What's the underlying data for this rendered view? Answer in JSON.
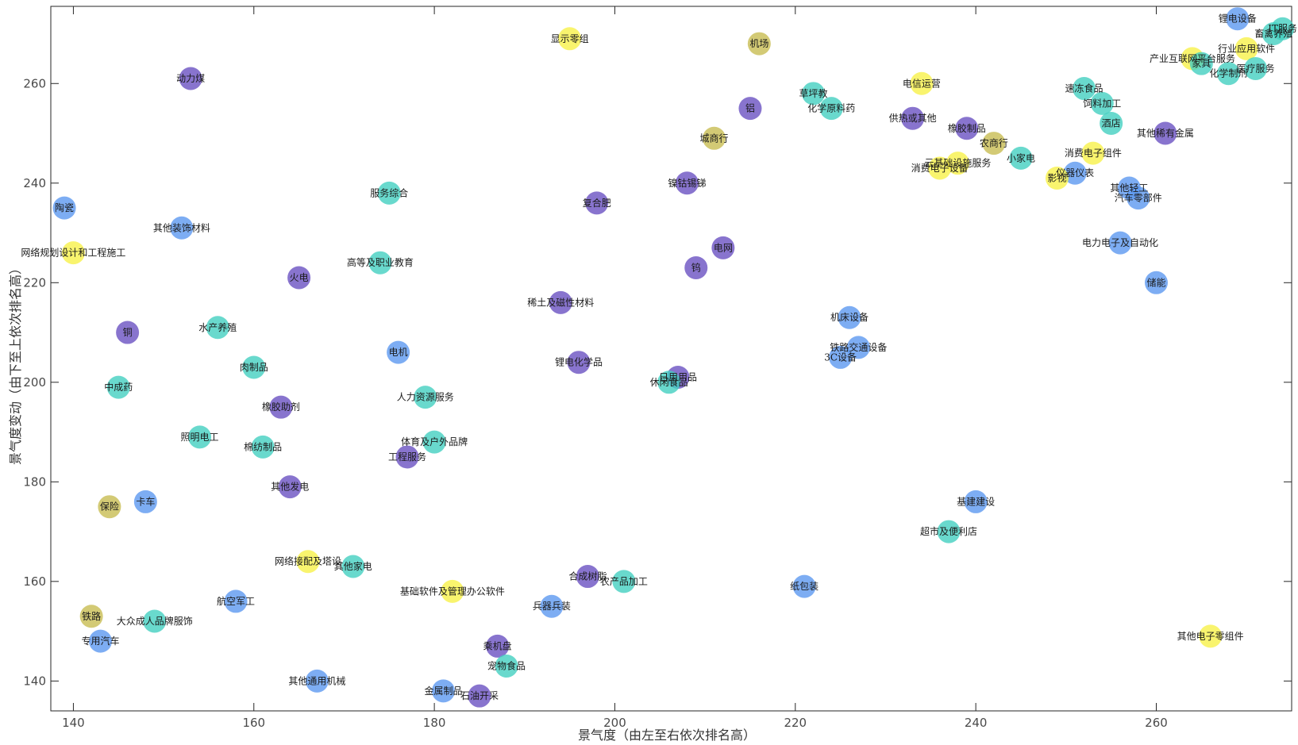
{
  "chart_data": {
    "type": "scatter",
    "xlabel": "景气度（由左至右依次排名高）",
    "ylabel": "景气度变动（由下至上依次排名高）",
    "xlim": [
      137.5,
      275
    ],
    "ylim": [
      134,
      275.5
    ],
    "xticks": [
      140,
      160,
      180,
      200,
      220,
      240,
      260
    ],
    "yticks": [
      140,
      160,
      180,
      200,
      220,
      240,
      260
    ],
    "grid": false,
    "colors": {
      "purple": "#6a51c2",
      "blue": "#5c98f0",
      "teal": "#44cfc0",
      "olive": "#c8bd52",
      "yellow": "#f7f14a"
    },
    "points": [
      {
        "label": "锂电设备",
        "x": 269,
        "y": 273,
        "c": "blue"
      },
      {
        "label": "畜禽养殖",
        "x": 273,
        "y": 270,
        "c": "teal"
      },
      {
        "label": "IT服务",
        "x": 274,
        "y": 271,
        "c": "teal"
      },
      {
        "label": "行业应用软件",
        "x": 270,
        "y": 267,
        "c": "yellow"
      },
      {
        "label": "产业互联网平台服务",
        "x": 264,
        "y": 265,
        "c": "yellow"
      },
      {
        "label": "家具",
        "x": 265,
        "y": 264,
        "c": "teal"
      },
      {
        "label": "化学制剂",
        "x": 268,
        "y": 262,
        "c": "teal"
      },
      {
        "label": "医疗服务",
        "x": 271,
        "y": 263,
        "c": "teal"
      },
      {
        "label": "速冻食品",
        "x": 252,
        "y": 259,
        "c": "teal"
      },
      {
        "label": "饲料加工",
        "x": 254,
        "y": 256,
        "c": "teal"
      },
      {
        "label": "酒店",
        "x": 255,
        "y": 252,
        "c": "teal"
      },
      {
        "label": "其他稀有金属",
        "x": 261,
        "y": 250,
        "c": "purple"
      },
      {
        "label": "消费电子组件",
        "x": 253,
        "y": 246,
        "c": "yellow"
      },
      {
        "label": "小家电",
        "x": 245,
        "y": 245,
        "c": "teal"
      },
      {
        "label": "仪器仪表",
        "x": 251,
        "y": 242,
        "c": "blue"
      },
      {
        "label": "影视",
        "x": 249,
        "y": 241,
        "c": "yellow"
      },
      {
        "label": "其他轻工",
        "x": 257,
        "y": 239,
        "c": "blue"
      },
      {
        "label": "汽车零部件",
        "x": 258,
        "y": 237,
        "c": "blue"
      },
      {
        "label": "电力电子及自动化",
        "x": 256,
        "y": 228,
        "c": "blue"
      },
      {
        "label": "储能",
        "x": 260,
        "y": 220,
        "c": "blue"
      },
      {
        "label": "电信运营",
        "x": 234,
        "y": 260,
        "c": "yellow"
      },
      {
        "label": "供热或其他",
        "x": 233,
        "y": 253,
        "c": "purple"
      },
      {
        "label": "橡胶制品",
        "x": 239,
        "y": 251,
        "c": "purple"
      },
      {
        "label": "农商行",
        "x": 242,
        "y": 248,
        "c": "olive"
      },
      {
        "label": "云基础设施服务",
        "x": 238,
        "y": 244,
        "c": "yellow"
      },
      {
        "label": "消费电子设备",
        "x": 236,
        "y": 243,
        "c": "yellow"
      },
      {
        "label": "基建建设",
        "x": 240,
        "y": 176,
        "c": "blue"
      },
      {
        "label": "超市及便利店",
        "x": 237,
        "y": 170,
        "c": "teal"
      },
      {
        "label": "其他电子零组件",
        "x": 266,
        "y": 149,
        "c": "yellow"
      },
      {
        "label": "机场",
        "x": 216,
        "y": 268,
        "c": "olive"
      },
      {
        "label": "草坪教",
        "x": 222,
        "y": 258,
        "c": "teal"
      },
      {
        "label": "化学原料药",
        "x": 224,
        "y": 255,
        "c": "teal"
      },
      {
        "label": "铝",
        "x": 215,
        "y": 255,
        "c": "purple"
      },
      {
        "label": "城商行",
        "x": 211,
        "y": 249,
        "c": "olive"
      },
      {
        "label": "镍钴锡锑",
        "x": 208,
        "y": 240,
        "c": "purple"
      },
      {
        "label": "电网",
        "x": 212,
        "y": 227,
        "c": "purple"
      },
      {
        "label": "钨",
        "x": 209,
        "y": 223,
        "c": "purple"
      },
      {
        "label": "机床设备",
        "x": 226,
        "y": 213,
        "c": "blue"
      },
      {
        "label": "铁路交通设备",
        "x": 227,
        "y": 207,
        "c": "blue"
      },
      {
        "label": "3C设备",
        "x": 225,
        "y": 205,
        "c": "blue"
      },
      {
        "label": "日用用品",
        "x": 207,
        "y": 201,
        "c": "purple"
      },
      {
        "label": "休闲食品",
        "x": 206,
        "y": 200,
        "c": "teal"
      },
      {
        "label": "纸包装",
        "x": 221,
        "y": 159,
        "c": "blue"
      },
      {
        "label": "显示零组",
        "x": 195,
        "y": 269,
        "c": "yellow"
      },
      {
        "label": "复合肥",
        "x": 198,
        "y": 236,
        "c": "purple"
      },
      {
        "label": "稀土及磁性材料",
        "x": 194,
        "y": 216,
        "c": "purple"
      },
      {
        "label": "锂电化学品",
        "x": 196,
        "y": 204,
        "c": "purple"
      },
      {
        "label": "合成树脂",
        "x": 197,
        "y": 161,
        "c": "purple"
      },
      {
        "label": "农产品加工",
        "x": 201,
        "y": 160,
        "c": "teal"
      },
      {
        "label": "兵器兵装",
        "x": 193,
        "y": 155,
        "c": "blue"
      },
      {
        "label": "基础软件及管理办公软件",
        "x": 182,
        "y": 158,
        "c": "yellow"
      },
      {
        "label": "乘机盘",
        "x": 187,
        "y": 147,
        "c": "purple"
      },
      {
        "label": "宠物食品",
        "x": 188,
        "y": 143,
        "c": "teal"
      },
      {
        "label": "金属制品",
        "x": 181,
        "y": 138,
        "c": "blue"
      },
      {
        "label": "石油开采",
        "x": 185,
        "y": 137,
        "c": "purple"
      },
      {
        "label": "服务综合",
        "x": 175,
        "y": 238,
        "c": "teal"
      },
      {
        "label": "高等及职业教育",
        "x": 174,
        "y": 224,
        "c": "teal"
      },
      {
        "label": "电机",
        "x": 176,
        "y": 206,
        "c": "blue"
      },
      {
        "label": "人力资源服务",
        "x": 179,
        "y": 197,
        "c": "teal"
      },
      {
        "label": "体育及户外品牌",
        "x": 180,
        "y": 188,
        "c": "teal"
      },
      {
        "label": "工程服务",
        "x": 177,
        "y": 185,
        "c": "purple"
      },
      {
        "label": "动力煤",
        "x": 153,
        "y": 261,
        "c": "purple"
      },
      {
        "label": "其他装饰材料",
        "x": 152,
        "y": 231,
        "c": "blue"
      },
      {
        "label": "火电",
        "x": 165,
        "y": 221,
        "c": "purple"
      },
      {
        "label": "水产养殖",
        "x": 156,
        "y": 211,
        "c": "teal"
      },
      {
        "label": "肉制品",
        "x": 160,
        "y": 203,
        "c": "teal"
      },
      {
        "label": "橡胶助剂",
        "x": 163,
        "y": 195,
        "c": "purple"
      },
      {
        "label": "照明电工",
        "x": 154,
        "y": 189,
        "c": "teal"
      },
      {
        "label": "棉纺制品",
        "x": 161,
        "y": 187,
        "c": "teal"
      },
      {
        "label": "其他发电",
        "x": 164,
        "y": 179,
        "c": "purple"
      },
      {
        "label": "网络接配及塔设",
        "x": 166,
        "y": 164,
        "c": "yellow"
      },
      {
        "label": "其他家电",
        "x": 171,
        "y": 163,
        "c": "teal"
      },
      {
        "label": "航空军工",
        "x": 158,
        "y": 156,
        "c": "blue"
      },
      {
        "label": "其他通用机械",
        "x": 167,
        "y": 140,
        "c": "blue"
      },
      {
        "label": "陶瓷",
        "x": 139,
        "y": 235,
        "c": "blue"
      },
      {
        "label": "网络规划设计和工程施工",
        "x": 140,
        "y": 226,
        "c": "yellow"
      },
      {
        "label": "铜",
        "x": 146,
        "y": 210,
        "c": "purple"
      },
      {
        "label": "中成药",
        "x": 145,
        "y": 199,
        "c": "teal"
      },
      {
        "label": "卡车",
        "x": 148,
        "y": 176,
        "c": "blue"
      },
      {
        "label": "保险",
        "x": 144,
        "y": 175,
        "c": "olive"
      },
      {
        "label": "铁路",
        "x": 142,
        "y": 153,
        "c": "olive"
      },
      {
        "label": "大众成人品牌服饰",
        "x": 149,
        "y": 152,
        "c": "teal"
      },
      {
        "label": "专用汽车",
        "x": 143,
        "y": 148,
        "c": "blue"
      }
    ]
  }
}
